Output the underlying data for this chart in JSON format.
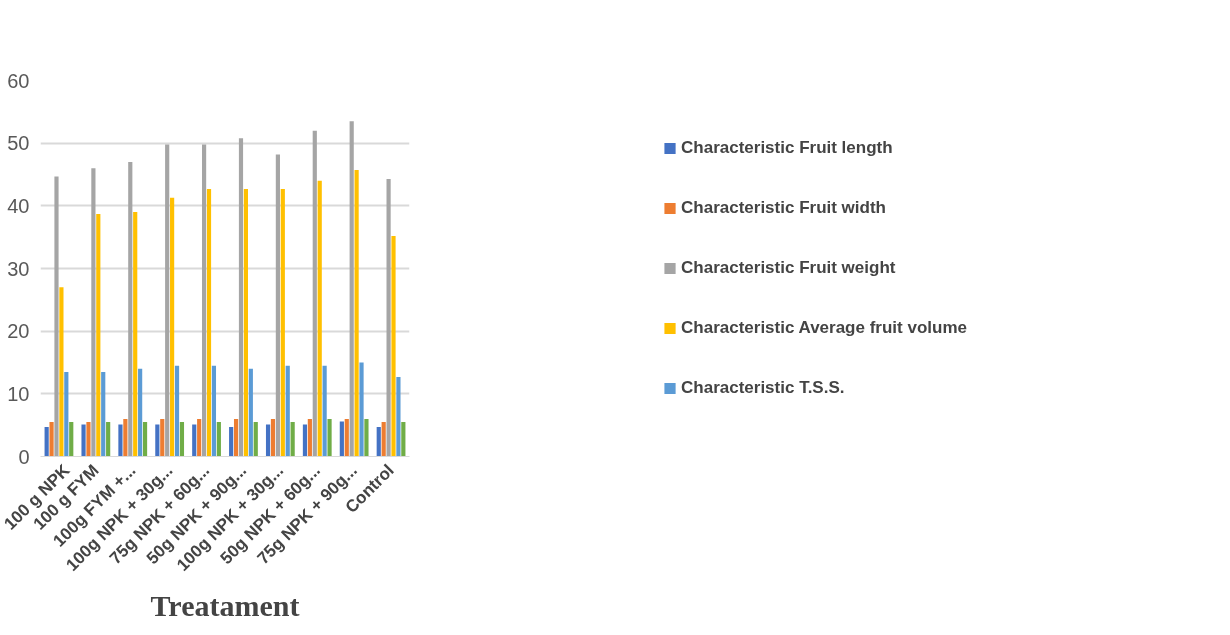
{
  "chart_data": {
    "type": "bar",
    "xlabel": "Treatament",
    "categories": [
      "100 g NPK",
      "100 g FYM",
      "100g FYM +...",
      "100g NPK + 30g...",
      "75g NPK + 60g...",
      "50g NPK + 90g...",
      "100g NPK + 30g...",
      "50g NPK + 60g...",
      "75g NPK + 90g...",
      "Control"
    ],
    "series": [
      {
        "name": "Characteristic Fruit length",
        "color": "#4472c4",
        "values": [
          4.7,
          5.1,
          5.1,
          5.1,
          5.1,
          4.7,
          5.1,
          5.1,
          5.6,
          4.7
        ]
      },
      {
        "name": "Characteristic Fruit width",
        "color": "#ed7d31",
        "values": [
          5.5,
          5.5,
          6,
          6,
          6,
          6,
          6,
          6,
          6,
          5.5
        ]
      },
      {
        "name": "Characteristic Fruit weight",
        "color": "#a5a5a5",
        "values": [
          44.7,
          46,
          47,
          49.8,
          49.8,
          50.8,
          48.2,
          52,
          53.5,
          44.3
        ]
      },
      {
        "name": "Characteristic Average fruit volume",
        "color": "#ffc000",
        "values": [
          27,
          38.7,
          39,
          41.3,
          42.7,
          42.7,
          42.7,
          44,
          45.7,
          35.2
        ]
      },
      {
        "name": "Characteristic T.S.S.",
        "color": "#5b9bd5",
        "values": [
          13.5,
          13.5,
          14,
          14.5,
          14.5,
          14,
          14.5,
          14.5,
          15,
          12.7
        ]
      },
      {
        "color": "#70ad47",
        "values": [
          5.5,
          5.5,
          5.5,
          5.5,
          5.5,
          5.5,
          5.5,
          6,
          6,
          5.5
        ]
      }
    ],
    "ylim": [
      0,
      60
    ],
    "yticks": [
      0,
      10,
      20,
      30,
      40,
      50,
      60
    ],
    "grid": "y",
    "legend": "right"
  }
}
